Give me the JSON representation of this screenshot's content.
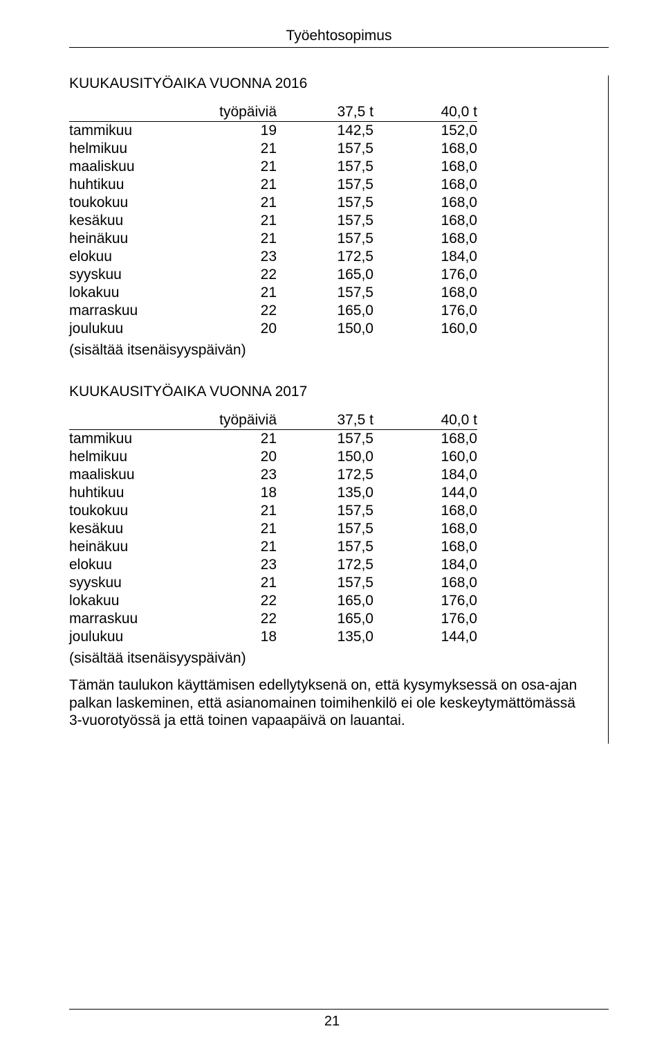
{
  "header": {
    "title": "Työehtosopimus"
  },
  "section1": {
    "title": "KUUKAUSITYÖAIKA VUONNA 2016",
    "columns": [
      "",
      "työpäiviä",
      "37,5 t",
      "40,0 t"
    ],
    "rows": [
      {
        "label": "tammikuu",
        "days": "19",
        "v1": "142,5",
        "v2": "152,0"
      },
      {
        "label": "helmikuu",
        "days": "21",
        "v1": "157,5",
        "v2": "168,0"
      },
      {
        "label": "maaliskuu",
        "days": "21",
        "v1": "157,5",
        "v2": "168,0"
      },
      {
        "label": "huhtikuu",
        "days": "21",
        "v1": "157,5",
        "v2": "168,0"
      },
      {
        "label": "toukokuu",
        "days": "21",
        "v1": "157,5",
        "v2": "168,0"
      },
      {
        "label": "kesäkuu",
        "days": "21",
        "v1": "157,5",
        "v2": "168,0"
      },
      {
        "label": "heinäkuu",
        "days": "21",
        "v1": "157,5",
        "v2": "168,0"
      },
      {
        "label": "elokuu",
        "days": "23",
        "v1": "172,5",
        "v2": "184,0"
      },
      {
        "label": "syyskuu",
        "days": "22",
        "v1": "165,0",
        "v2": "176,0"
      },
      {
        "label": "lokakuu",
        "days": "21",
        "v1": "157,5",
        "v2": "168,0"
      },
      {
        "label": "marraskuu",
        "days": "22",
        "v1": "165,0",
        "v2": "176,0"
      },
      {
        "label": "joulukuu",
        "days": "20",
        "v1": "150,0",
        "v2": "160,0"
      }
    ],
    "note": "(sisältää itsenäisyyspäivän)"
  },
  "section2": {
    "title": "KUUKAUSITYÖAIKA VUONNA 2017",
    "columns": [
      "",
      "työpäiviä",
      "37,5 t",
      "40,0 t"
    ],
    "rows": [
      {
        "label": "tammikuu",
        "days": "21",
        "v1": "157,5",
        "v2": "168,0"
      },
      {
        "label": "helmikuu",
        "days": "20",
        "v1": "150,0",
        "v2": "160,0"
      },
      {
        "label": "maaliskuu",
        "days": "23",
        "v1": "172,5",
        "v2": "184,0"
      },
      {
        "label": "huhtikuu",
        "days": "18",
        "v1": "135,0",
        "v2": "144,0"
      },
      {
        "label": "toukokuu",
        "days": "21",
        "v1": "157,5",
        "v2": "168,0"
      },
      {
        "label": "kesäkuu",
        "days": "21",
        "v1": "157,5",
        "v2": "168,0"
      },
      {
        "label": "heinäkuu",
        "days": "21",
        "v1": "157,5",
        "v2": "168,0"
      },
      {
        "label": "elokuu",
        "days": "23",
        "v1": "172,5",
        "v2": "184,0"
      },
      {
        "label": "syyskuu",
        "days": "21",
        "v1": "157,5",
        "v2": "168,0"
      },
      {
        "label": "lokakuu",
        "days": "22",
        "v1": "165,0",
        "v2": "176,0"
      },
      {
        "label": "marraskuu",
        "days": "22",
        "v1": "165,0",
        "v2": "176,0"
      },
      {
        "label": "joulukuu",
        "days": "18",
        "v1": "135,0",
        "v2": "144,0"
      }
    ],
    "note": "(sisältää itsenäisyyspäivän)"
  },
  "paragraph": "Tämän taulukon käyttämisen edellytyksenä on, että kysymyksessä on osa-ajan palkan laskeminen, että asianomainen toimihenkilö ei ole keskeytymättömässä 3-vuorotyössä ja että toinen vapaapäivä on lauantai.",
  "footer": {
    "page": "21"
  }
}
